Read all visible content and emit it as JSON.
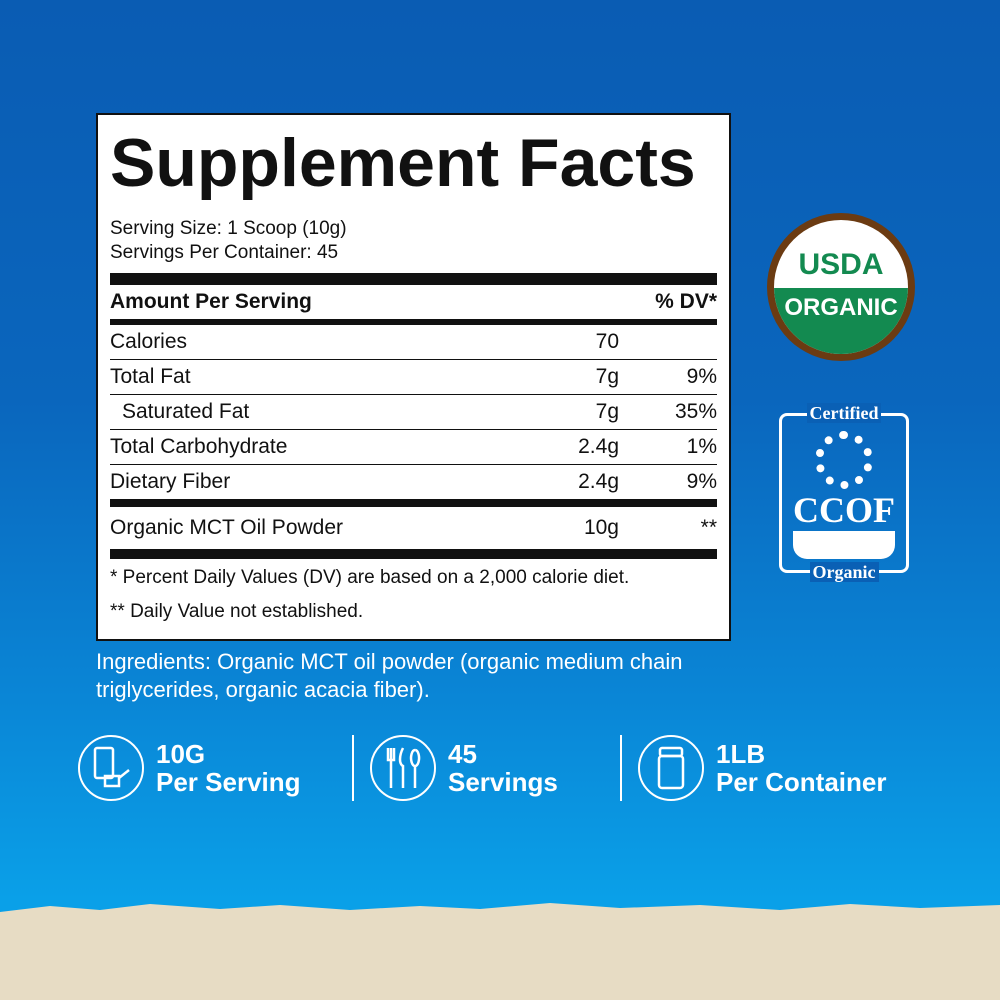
{
  "facts": {
    "title": "Supplement Facts",
    "serving_size": "Serving Size: 1 Scoop (10g)",
    "servings_per_container": "Servings Per Container: 45",
    "header": {
      "name": "Amount Per Serving",
      "dv": "% DV*"
    },
    "rows": [
      {
        "name": "Calories",
        "amount": "70",
        "dv": ""
      },
      {
        "name": "Total Fat",
        "amount": "7g",
        "dv": "9%"
      },
      {
        "name": "Saturated Fat",
        "amount": "7g",
        "dv": "35%"
      },
      {
        "name": "Total Carbohydrate",
        "amount": "2.4g",
        "dv": "1%"
      },
      {
        "name": "Dietary Fiber",
        "amount": "2.4g",
        "dv": "9%"
      }
    ],
    "ingredient_row": {
      "name": "Organic MCT Oil Powder",
      "amount": "10g",
      "dv": "**"
    },
    "note1": "* Percent Daily Values (DV) are based on a 2,000 calorie diet.",
    "note2": "** Daily Value not established."
  },
  "ingredients": "Ingredients: Organic MCT oil powder (organic medium chain triglycerides, organic acacia fiber).",
  "stats": [
    {
      "icon": "scoop-glass-icon",
      "line1": "10G",
      "line2": "Per Serving"
    },
    {
      "icon": "utensils-icon",
      "line1": "45",
      "line2": "Servings"
    },
    {
      "icon": "jar-icon",
      "line1": "1LB",
      "line2": "Per Container"
    }
  ],
  "badges": {
    "usda_top": "USDA",
    "usda_bottom": "ORGANIC",
    "ccof_top": "Certified",
    "ccof_mid": "CCOF",
    "ccof_bottom": "Organic"
  },
  "colors": {
    "background": "#0a5cb3",
    "usda_green": "#138a50",
    "usda_brown": "#6b3b12",
    "sand": "#e7dcc4"
  }
}
